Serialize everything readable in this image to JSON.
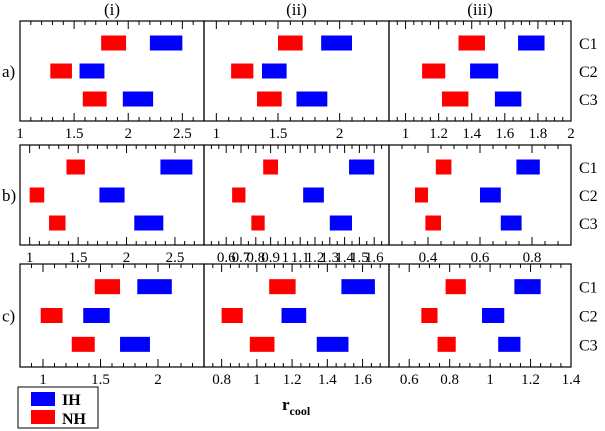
{
  "chart_data": {
    "type": "range",
    "xlabel": "r",
    "xlabel_sub": "cool",
    "columns": [
      "(i)",
      "(ii)",
      "(iii)"
    ],
    "rows": [
      "a)",
      "b)",
      "c)"
    ],
    "categories": [
      "C1",
      "C2",
      "C3"
    ],
    "colors": {
      "IH": "#0000ff",
      "NH": "#ff0000"
    },
    "legend": [
      {
        "name": "IH",
        "color": "#0000ff"
      },
      {
        "name": "NH",
        "color": "#ff0000"
      }
    ],
    "legend_position": "bottom-left",
    "axes": [
      [
        {
          "xlim": [
            1,
            2.7
          ],
          "ticks": [
            1,
            1.5,
            2,
            2.5
          ],
          "minor": 0.1,
          "series": [
            {
              "name": "IH",
              "ranges": [
                [
                  2.2,
                  2.5
                ],
                [
                  1.55,
                  1.78
                ],
                [
                  1.95,
                  2.23
                ]
              ]
            },
            {
              "name": "NH",
              "ranges": [
                [
                  1.75,
                  1.98
                ],
                [
                  1.28,
                  1.48
                ],
                [
                  1.58,
                  1.8
                ]
              ]
            }
          ]
        },
        {
          "xlim": [
            0.9,
            2.4
          ],
          "ticks": [
            1,
            1.5,
            2
          ],
          "minor": 0.1,
          "series": [
            {
              "name": "IH",
              "ranges": [
                [
                  1.85,
                  2.1
                ],
                [
                  1.37,
                  1.57
                ],
                [
                  1.65,
                  1.9
                ]
              ]
            },
            {
              "name": "NH",
              "ranges": [
                [
                  1.5,
                  1.7
                ],
                [
                  1.12,
                  1.3
                ],
                [
                  1.33,
                  1.53
                ]
              ]
            }
          ]
        },
        {
          "xlim": [
            0.9,
            2.0
          ],
          "ticks": [
            1,
            1.2,
            1.4,
            1.6,
            1.8,
            2
          ],
          "minor": 0.05,
          "series": [
            {
              "name": "IH",
              "ranges": [
                [
                  1.68,
                  1.84
                ],
                [
                  1.39,
                  1.56
                ],
                [
                  1.54,
                  1.7
                ]
              ]
            },
            {
              "name": "NH",
              "ranges": [
                [
                  1.32,
                  1.48
                ],
                [
                  1.1,
                  1.24
                ],
                [
                  1.22,
                  1.38
                ]
              ]
            }
          ]
        }
      ],
      [
        {
          "xlim": [
            0.9,
            2.8
          ],
          "ticks": [
            1,
            1.5,
            2,
            2.5
          ],
          "minor": 0.1,
          "series": [
            {
              "name": "IH",
              "ranges": [
                [
                  2.35,
                  2.68
                ],
                [
                  1.72,
                  1.98
                ],
                [
                  2.08,
                  2.38
                ]
              ]
            },
            {
              "name": "NH",
              "ranges": [
                [
                  1.38,
                  1.57
                ],
                [
                  1.0,
                  1.15
                ],
                [
                  1.2,
                  1.37
                ]
              ]
            }
          ]
        },
        {
          "xlim": [
            0.45,
            1.7
          ],
          "ticks": [
            0.6,
            0.7,
            0.8,
            0.9,
            1,
            1.1,
            1.2,
            1.3,
            1.4,
            1.5,
            1.6
          ],
          "minor": 0.05,
          "series": [
            {
              "name": "IH",
              "ranges": [
                [
                  1.43,
                  1.6
                ],
                [
                  1.12,
                  1.26
                ],
                [
                  1.3,
                  1.45
                ]
              ]
            },
            {
              "name": "NH",
              "ranges": [
                [
                  0.85,
                  0.95
                ],
                [
                  0.64,
                  0.73
                ],
                [
                  0.77,
                  0.86
                ]
              ]
            }
          ]
        },
        {
          "xlim": [
            0.25,
            0.95
          ],
          "ticks": [
            0.4,
            0.6,
            0.8
          ],
          "minor": 0.05,
          "series": [
            {
              "name": "IH",
              "ranges": [
                [
                  0.74,
                  0.83
                ],
                [
                  0.6,
                  0.68
                ],
                [
                  0.68,
                  0.76
                ]
              ]
            },
            {
              "name": "NH",
              "ranges": [
                [
                  0.43,
                  0.49
                ],
                [
                  0.35,
                  0.4
                ],
                [
                  0.39,
                  0.45
                ]
              ]
            }
          ]
        }
      ],
      [
        {
          "xlim": [
            0.8,
            2.4
          ],
          "ticks": [
            1,
            1.5,
            2
          ],
          "minor": 0.1,
          "series": [
            {
              "name": "IH",
              "ranges": [
                [
                  1.82,
                  2.12
                ],
                [
                  1.35,
                  1.58
                ],
                [
                  1.67,
                  1.93
                ]
              ]
            },
            {
              "name": "NH",
              "ranges": [
                [
                  1.45,
                  1.67
                ],
                [
                  0.98,
                  1.17
                ],
                [
                  1.25,
                  1.45
                ]
              ]
            }
          ]
        },
        {
          "xlim": [
            0.7,
            1.75
          ],
          "ticks": [
            0.8,
            1,
            1.2,
            1.4,
            1.6
          ],
          "minor": 0.05,
          "series": [
            {
              "name": "IH",
              "ranges": [
                [
                  1.48,
                  1.67
                ],
                [
                  1.14,
                  1.28
                ],
                [
                  1.34,
                  1.52
                ]
              ]
            },
            {
              "name": "NH",
              "ranges": [
                [
                  1.07,
                  1.22
                ],
                [
                  0.8,
                  0.92
                ],
                [
                  0.96,
                  1.1
                ]
              ]
            }
          ]
        },
        {
          "xlim": [
            0.5,
            1.4
          ],
          "ticks": [
            0.6,
            0.8,
            1,
            1.2,
            1.4
          ],
          "minor": 0.05,
          "series": [
            {
              "name": "IH",
              "ranges": [
                [
                  1.12,
                  1.25
                ],
                [
                  0.96,
                  1.07
                ],
                [
                  1.04,
                  1.15
                ]
              ]
            },
            {
              "name": "NH",
              "ranges": [
                [
                  0.78,
                  0.88
                ],
                [
                  0.66,
                  0.74
                ],
                [
                  0.74,
                  0.83
                ]
              ]
            }
          ]
        }
      ]
    ]
  }
}
